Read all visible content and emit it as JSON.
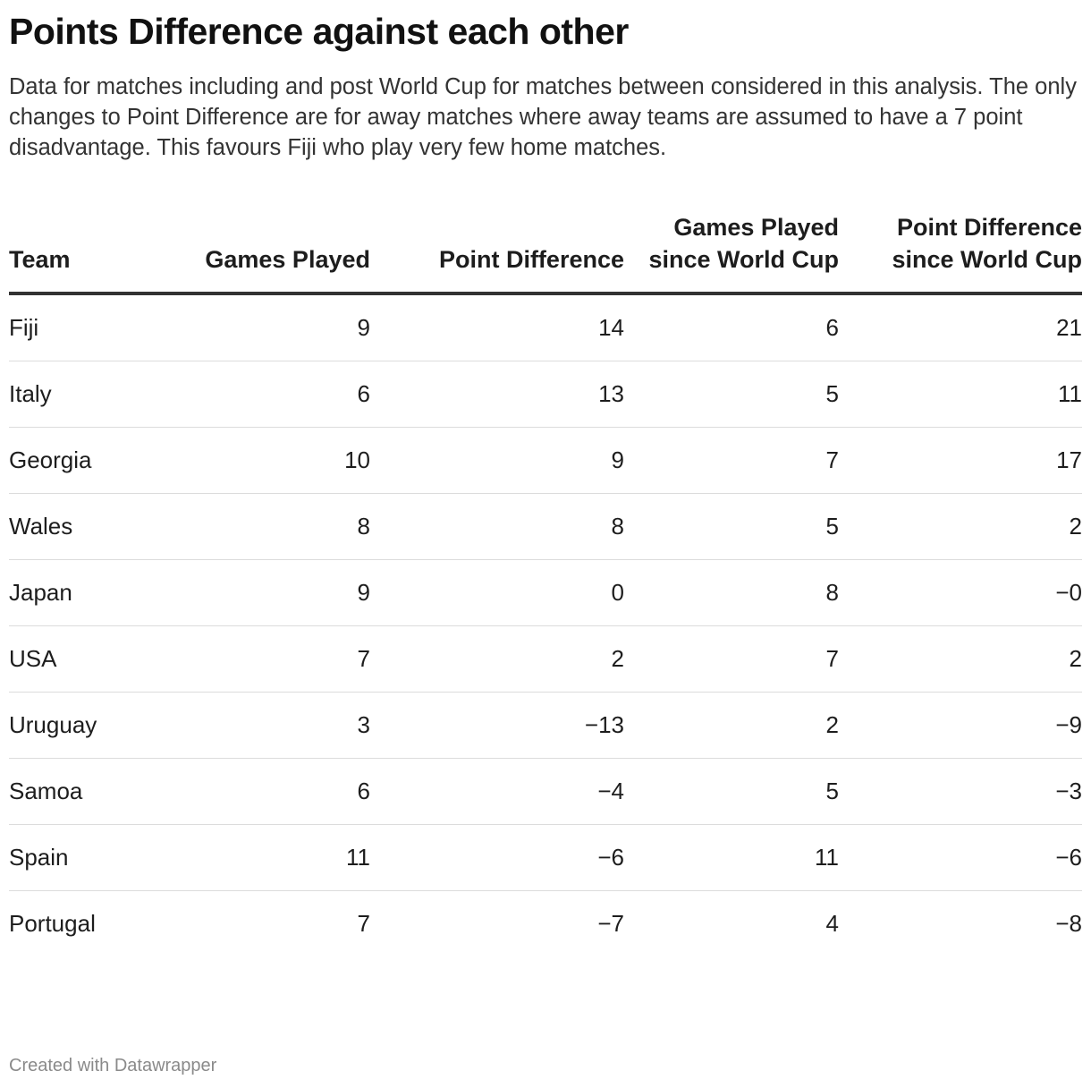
{
  "header": {
    "title": "Points Difference against each other",
    "description": "Data for matches including and post World Cup for matches between considered in this analysis. The only changes to Point Difference are for away matches where away teams are assumed to have a 7 point disadvantage. This favours Fiji who play very few home matches."
  },
  "footer": {
    "credit": "Created with Datawrapper"
  },
  "chart_data": {
    "type": "table",
    "columns": [
      "Team",
      "Games Played",
      "Point Difference",
      "Games Played since World Cup",
      "Point Difference since World Cup"
    ],
    "rows": [
      [
        "Fiji",
        "9",
        "14",
        "6",
        "21"
      ],
      [
        "Italy",
        "6",
        "13",
        "5",
        "11"
      ],
      [
        "Georgia",
        "10",
        "9",
        "7",
        "17"
      ],
      [
        "Wales",
        "8",
        "8",
        "5",
        "2"
      ],
      [
        "Japan",
        "9",
        "0",
        "8",
        "−0"
      ],
      [
        "USA",
        "7",
        "2",
        "7",
        "2"
      ],
      [
        "Uruguay",
        "3",
        "−13",
        "2",
        "−9"
      ],
      [
        "Samoa",
        "6",
        "−4",
        "5",
        "−3"
      ],
      [
        "Spain",
        "11",
        "−6",
        "11",
        "−6"
      ],
      [
        "Portugal",
        "7",
        "−7",
        "4",
        "−8"
      ]
    ]
  }
}
